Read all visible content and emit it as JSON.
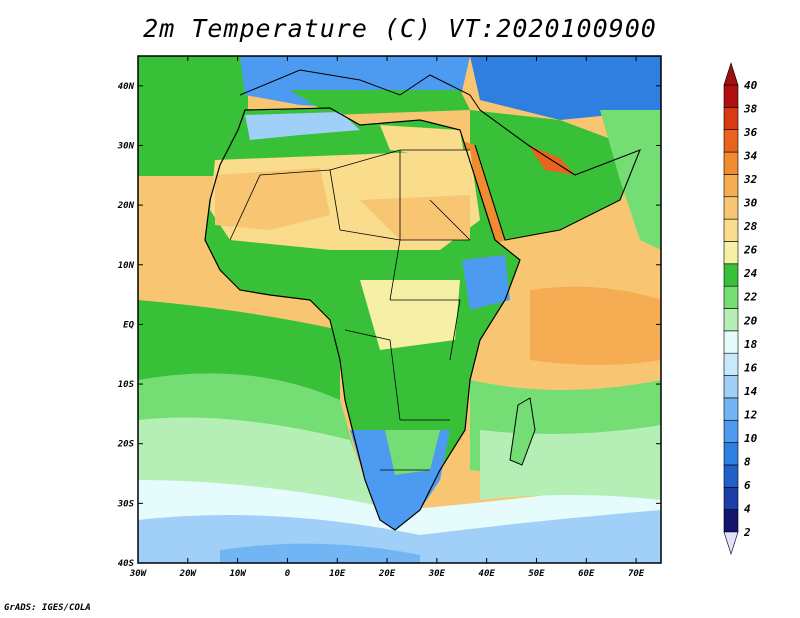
{
  "title": "2m Temperature (C) VT:2020100900",
  "credit": "GrADS: IGES/COLA",
  "map": {
    "lat_ticks": [
      "40N",
      "30N",
      "20N",
      "10N",
      "EQ",
      "10S",
      "20S",
      "30S",
      "40S"
    ],
    "lon_ticks": [
      "30W",
      "20W",
      "10W",
      "0",
      "10E",
      "20E",
      "30E",
      "40E",
      "50E",
      "60E",
      "70E"
    ],
    "lon_range": [
      -30,
      75
    ],
    "lat_range": [
      -40,
      45
    ]
  },
  "colorbar": {
    "labels": [
      "2",
      "4",
      "6",
      "8",
      "10",
      "12",
      "14",
      "16",
      "18",
      "20",
      "22",
      "24",
      "26",
      "28",
      "30",
      "32",
      "34",
      "36",
      "38",
      "40"
    ],
    "colors": [
      "#13156e",
      "#1b3fa6",
      "#2060c8",
      "#2f7fe0",
      "#4d9bf0",
      "#72b5f4",
      "#a0d0f8",
      "#c8e8fb",
      "#e6fbfb",
      "#b5efb5",
      "#74dd74",
      "#38c038",
      "#f5f0a6",
      "#f9dc8c",
      "#f8c672",
      "#f6ac52",
      "#f08c30",
      "#e8641e",
      "#d83a14",
      "#b01010"
    ],
    "under_color": "#e6e0ff",
    "over_color": "#a01010"
  }
}
